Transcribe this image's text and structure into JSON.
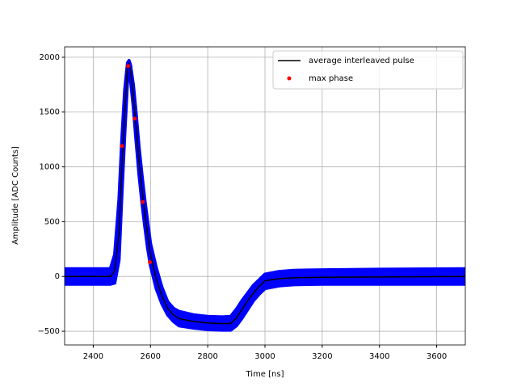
{
  "chart_data": {
    "type": "line",
    "x_label": "Time [ns]",
    "y_label": "Amplitude [ADC Counts]",
    "x": [
      2300,
      2460,
      2475,
      2490,
      2500,
      2510,
      2520,
      2525,
      2530,
      2540,
      2550,
      2560,
      2570,
      2580,
      2590,
      2600,
      2620,
      2640,
      2660,
      2680,
      2700,
      2750,
      2800,
      2850,
      2880,
      2900,
      2920,
      2940,
      2960,
      2980,
      3000,
      3050,
      3100,
      3200,
      3400,
      3700
    ],
    "band": {
      "color": "#0000ff",
      "upper": [
        70,
        70,
        200,
        700,
        1250,
        1700,
        1950,
        1970,
        1930,
        1750,
        1480,
        1180,
        930,
        700,
        500,
        300,
        80,
        -100,
        -230,
        -290,
        -320,
        -350,
        -365,
        -370,
        -365,
        -300,
        -220,
        -150,
        -80,
        -30,
        20,
        45,
        55,
        60,
        65,
        70
      ],
      "lower": [
        -70,
        -70,
        -60,
        150,
        750,
        1300,
        1800,
        1880,
        1800,
        1550,
        1230,
        930,
        680,
        460,
        260,
        100,
        -110,
        -250,
        -350,
        -410,
        -450,
        -470,
        -485,
        -490,
        -490,
        -450,
        -380,
        -300,
        -220,
        -160,
        -110,
        -85,
        -75,
        -70,
        -70,
        -70
      ]
    },
    "series": [
      {
        "name": "average interleaved pulse",
        "color": "#000000",
        "values": [
          0,
          0,
          50,
          400,
          1000,
          1500,
          1900,
          1940,
          1880,
          1650,
          1350,
          1050,
          800,
          580,
          380,
          200,
          -20,
          -180,
          -290,
          -350,
          -385,
          -410,
          -425,
          -430,
          -430,
          -380,
          -300,
          -220,
          -150,
          -90,
          -40,
          -20,
          -12,
          -8,
          -5,
          0
        ]
      }
    ],
    "scatter": {
      "name": "max phase",
      "color": "#ff0000",
      "x": [
        2500,
        2522,
        2545,
        2573,
        2598
      ],
      "values": [
        1190,
        1920,
        1440,
        680,
        130
      ]
    },
    "xlim": [
      2300,
      3700
    ],
    "xticks": [
      2400,
      2600,
      2800,
      3000,
      3200,
      3400,
      3600
    ],
    "ylim": [
      -625,
      2095
    ],
    "yticks": [
      {
        "value": -500,
        "label": "−500"
      },
      0,
      500,
      1000,
      1500,
      2000
    ],
    "grid": true,
    "legend": "upper right"
  }
}
